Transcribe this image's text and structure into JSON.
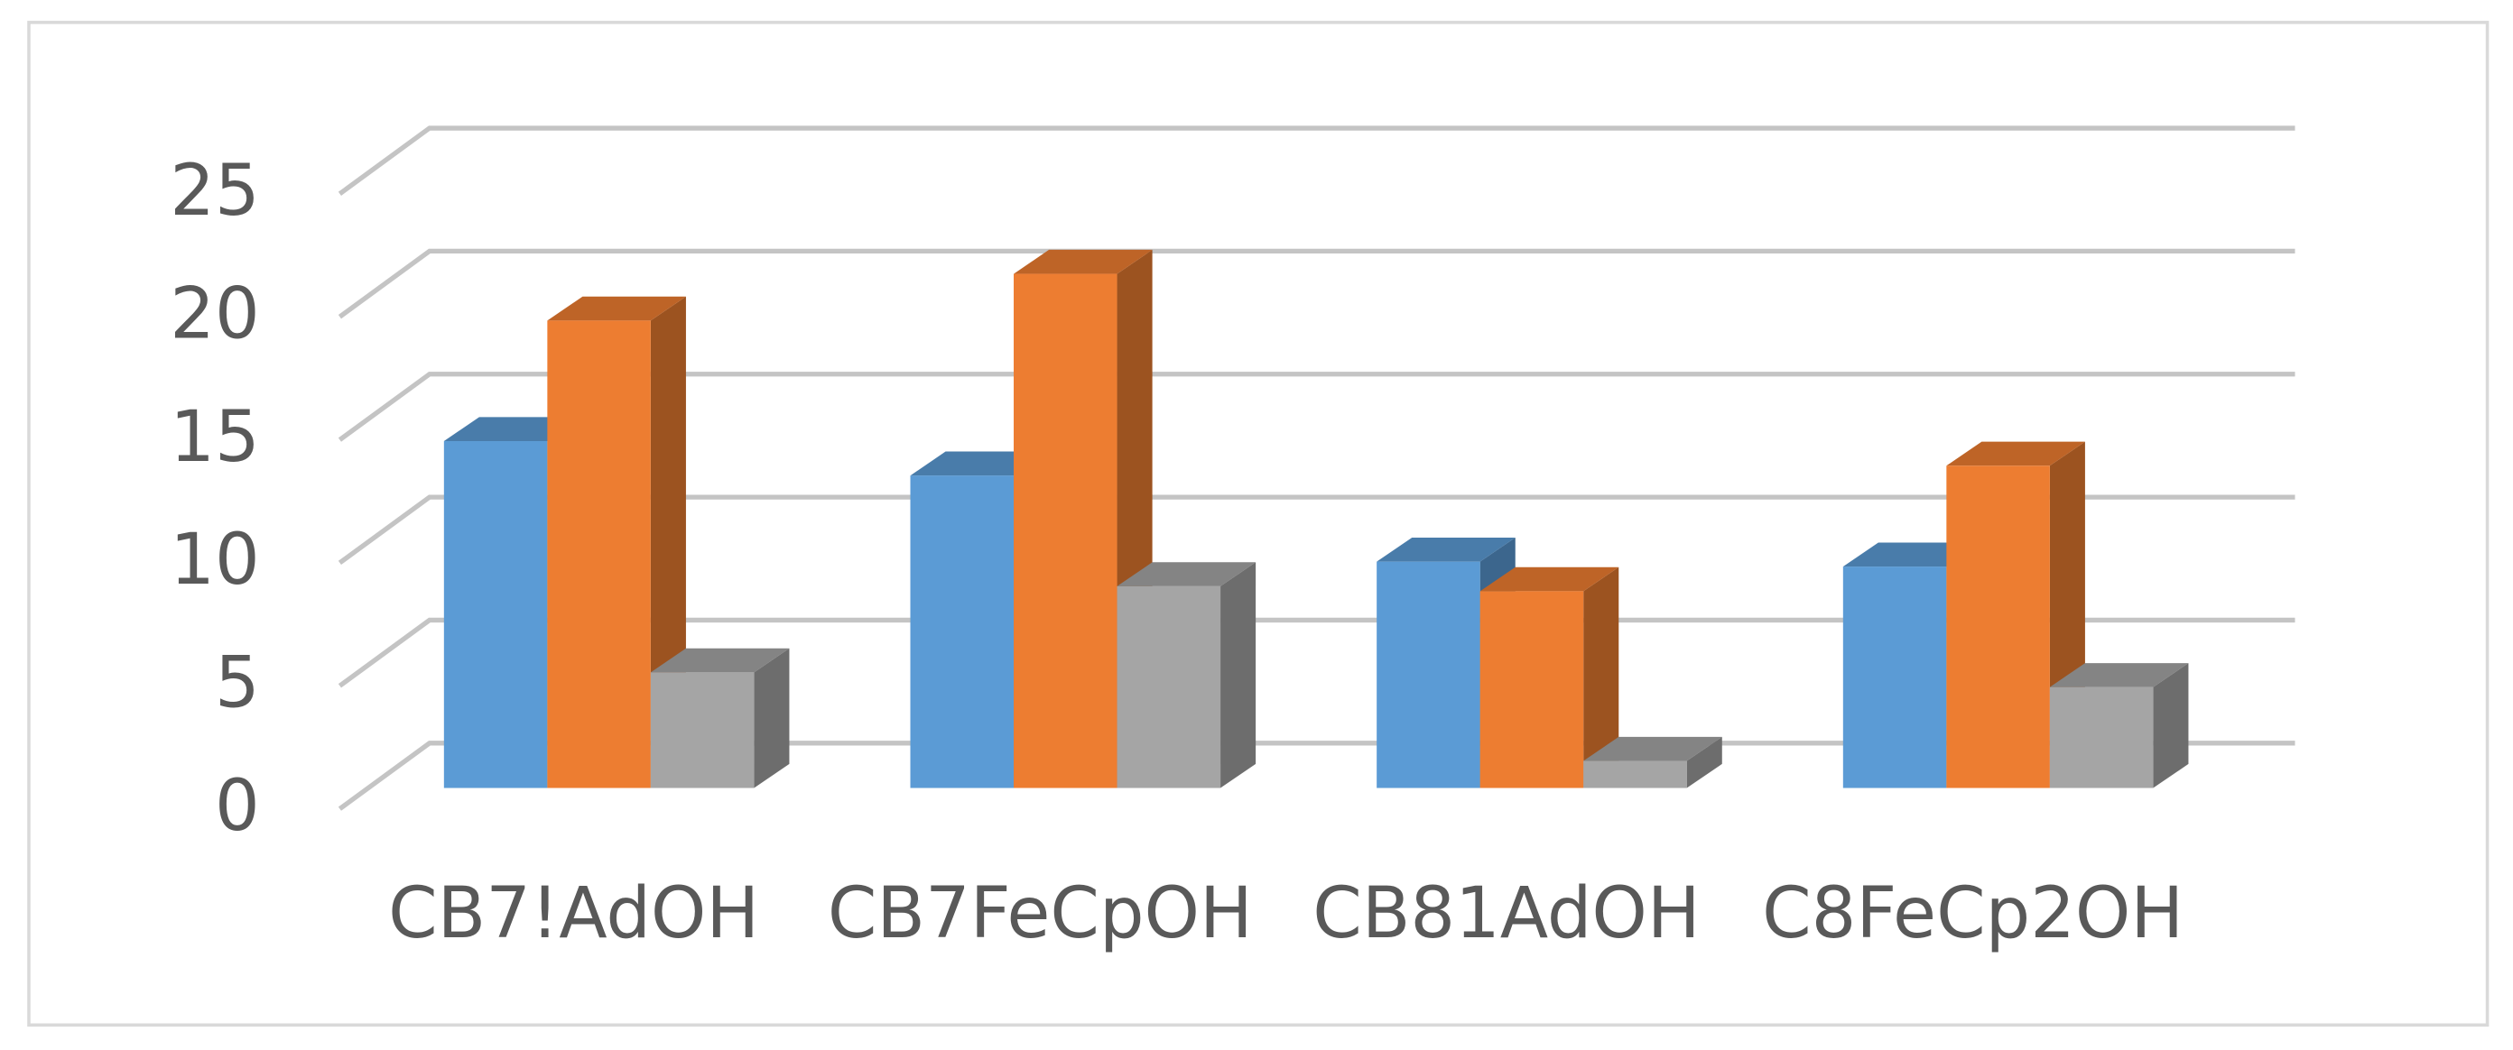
{
  "chart_data": {
    "type": "bar3d",
    "categories": [
      "CB7!AdOH",
      "CB7FeCpOH",
      "CB81AdOH",
      "C8FeCp2OH"
    ],
    "series": [
      {
        "color": "#5b9bd5",
        "values": [
          14.1,
          12.7,
          9.2,
          9.0
        ]
      },
      {
        "color": "#ed7d31",
        "values": [
          19.0,
          20.9,
          8.0,
          13.1
        ]
      },
      {
        "color": "#a5a5a5",
        "values": [
          4.7,
          8.2,
          1.1,
          4.1
        ]
      }
    ],
    "ylim": [
      0,
      25
    ],
    "yticks": [
      0,
      5,
      10,
      15,
      20,
      25
    ],
    "grid": true
  }
}
